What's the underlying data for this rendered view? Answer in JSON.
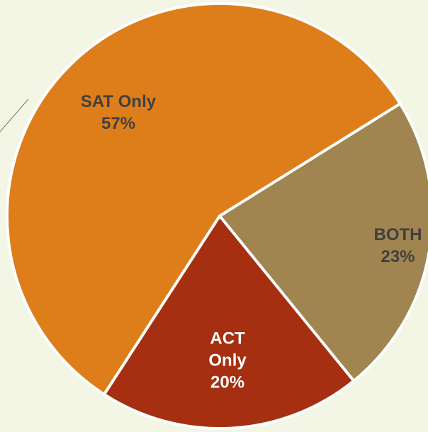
{
  "chart_data": {
    "type": "pie",
    "categories": [
      "SAT Only",
      "BOTH",
      "ACT Only"
    ],
    "values": [
      57,
      23,
      20
    ],
    "value_labels": [
      "57%",
      "23%",
      "20%"
    ],
    "colors": [
      "#de7e1a",
      "#a08550",
      "#a52f10"
    ],
    "label_colors": [
      "#404040",
      "#404040",
      "#ffffff"
    ]
  }
}
